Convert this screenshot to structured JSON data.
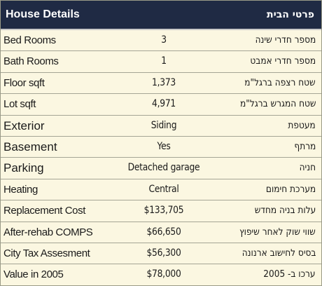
{
  "header": {
    "title_en": "House Details",
    "title_he": "פרטי הבית"
  },
  "rows": [
    {
      "label": "Bed Rooms",
      "value": "3",
      "hebrew": "מספר חדרי שינה"
    },
    {
      "label": "Bath Rooms",
      "value": "1",
      "hebrew": "מספר חדרי אמבט"
    },
    {
      "label": "Floor sqft",
      "value": "1,373",
      "hebrew": "שטח רצפה ברגל\"מ"
    },
    {
      "label": "Lot sqft",
      "value": "4,971",
      "hebrew": "שטח המגרש ברגל\"מ"
    },
    {
      "label": "Exterior",
      "value": "Siding",
      "hebrew": "מעטפת"
    },
    {
      "label": "Basement",
      "value": "Yes",
      "hebrew": "מרתף"
    },
    {
      "label": "Parking",
      "value": "Detached garage",
      "hebrew": "חניה"
    },
    {
      "label": "Heating",
      "value": "Central",
      "hebrew": "מערכת חימום"
    },
    {
      "label": "Replacement Cost",
      "value": "$133,705",
      "hebrew": "עלות בניה מחדש"
    },
    {
      "label": "After-rehab COMPS",
      "value": "$66,650",
      "hebrew": "שווי שוק לאחר שיפוץ"
    },
    {
      "label": "City Tax Assesment",
      "value": "$56,300",
      "hebrew": "בסיס לחישוב ארנונה"
    },
    {
      "label": "Value in 2005",
      "value": "$78,000",
      "hebrew": "ערכו ב- 2005"
    }
  ]
}
